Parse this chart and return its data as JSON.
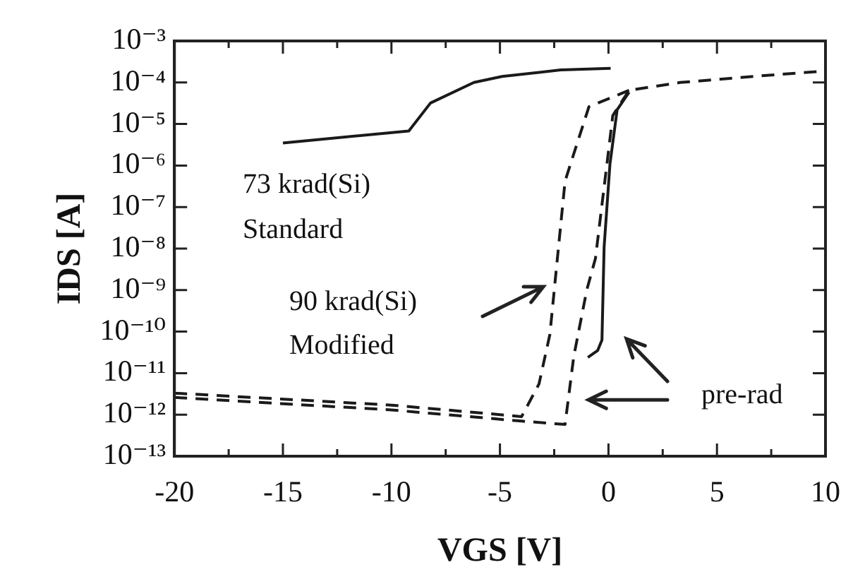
{
  "chart_data": {
    "type": "line",
    "xlabel": "VGS [V]",
    "ylabel": "IDS [A]",
    "log": "y",
    "grid": false,
    "legend": false,
    "marker": "none",
    "xlim": [
      -20,
      10
    ],
    "ylim": [
      1e-13,
      0.001
    ],
    "xticks": [
      -20,
      {
        "value": -17.5,
        "label": null
      },
      -15,
      {
        "value": -12.5,
        "label": null
      },
      -10,
      {
        "value": -7.5,
        "label": null
      },
      -5,
      {
        "value": -2.5,
        "label": null
      },
      0,
      {
        "value": 2.5,
        "label": null
      },
      5,
      {
        "value": 7.5,
        "label": null
      },
      10
    ],
    "yticks": [
      {
        "value": 1e-13,
        "label": "10⁻¹³"
      },
      {
        "value": 1e-12,
        "label": "10⁻¹²"
      },
      {
        "value": 1e-11,
        "label": "10⁻¹¹"
      },
      {
        "value": 1e-10,
        "label": "10⁻¹⁰"
      },
      {
        "value": 1e-09,
        "label": "10⁻⁹"
      },
      {
        "value": 1e-08,
        "label": "10⁻⁸"
      },
      {
        "value": 1e-07,
        "label": "10⁻⁷"
      },
      {
        "value": 1e-06,
        "label": "10⁻⁶"
      },
      {
        "value": 1e-05,
        "label": "10⁻⁵"
      },
      {
        "value": 0.0001,
        "label": "10⁻⁴"
      },
      {
        "value": 0.001,
        "label": "10⁻³"
      }
    ],
    "series": [
      {
        "color": "#1a1a1a",
        "line_style": "solid",
        "x": [
          -15,
          -9.2,
          -8.2,
          -6.2,
          -4.9,
          -2.2,
          0.1
        ],
        "values": [
          3.5e-06,
          6.8e-06,
          3.2e-05,
          0.0001,
          0.00014,
          0.0002,
          0.00022
        ]
      },
      {
        "color": "#1a1a1a",
        "line_style": "dashed",
        "x": [
          -20,
          -10,
          -4,
          -3.2,
          -2.7,
          -2.4,
          -2,
          -1.6,
          -0.9,
          0.95
        ],
        "values": [
          3.3e-12,
          1.7e-12,
          9e-13,
          5.5e-12,
          8.5e-11,
          3.3e-09,
          4.2e-07,
          1.9e-06,
          2.6e-05,
          6.5e-05
        ]
      },
      {
        "color": "#1a1a1a",
        "line_style": "dashed",
        "x": [
          -20,
          -10,
          -4,
          -2,
          -1.6,
          -1,
          -0.6,
          -0.07,
          0.2,
          0.95,
          3.3,
          6.7,
          10
        ],
        "values": [
          2.6e-12,
          1.3e-12,
          7e-13,
          5.8e-13,
          2.5e-11,
          1e-09,
          5.8e-09,
          1.1e-06,
          1.6e-05,
          6.5e-05,
          0.0001,
          0.00014,
          0.00019
        ]
      },
      {
        "color": "#1a1a1a",
        "line_style": "solid",
        "x": [
          -0.95,
          -0.5,
          -0.3,
          -0.2,
          0.07,
          0.4,
          0.95
        ],
        "values": [
          2.4e-11,
          3.5e-11,
          6.3e-11,
          1.1e-08,
          1.1e-06,
          2.2e-05,
          5.8e-05
        ]
      }
    ],
    "annotations": [
      "73 krad(Si)",
      "Standard",
      "90 krad(Si)",
      "Modified",
      "pre-rad"
    ]
  }
}
